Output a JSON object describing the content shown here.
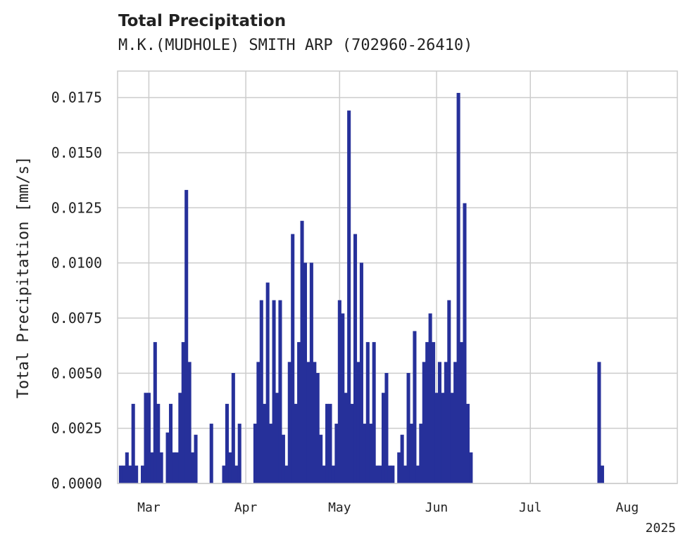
{
  "chart_data": {
    "type": "bar",
    "title": "Total Precipitation",
    "subtitle": "M.K.(MUDHOLE) SMITH ARP (702960-26410)",
    "xlabel": "",
    "ylabel": "Total Precipitation [mm/s]",
    "xlim": [
      "2025-02-19",
      "2025-08-17"
    ],
    "ylim": [
      0,
      0.0187
    ],
    "x_ticks": [
      "Mar",
      "Apr",
      "May",
      "Jun",
      "Jul",
      "Aug"
    ],
    "x_tick_dates": [
      "2025-03-01",
      "2025-04-01",
      "2025-05-01",
      "2025-06-01",
      "2025-07-01",
      "2025-08-01"
    ],
    "x_offset_label": "2025",
    "y_ticks": [
      "0.0000",
      "0.0025",
      "0.0050",
      "0.0075",
      "0.0100",
      "0.0125",
      "0.0150",
      "0.0175"
    ],
    "y_tick_values": [
      0,
      0.0025,
      0.005,
      0.0075,
      0.01,
      0.0125,
      0.015,
      0.0175
    ],
    "grid": true,
    "series": [
      {
        "color": "#26309a",
        "points": [
          [
            "2025-02-20",
            0.0008
          ],
          [
            "2025-02-21",
            0.0008
          ],
          [
            "2025-02-22",
            0.0014
          ],
          [
            "2025-02-23",
            0.0008
          ],
          [
            "2025-02-24",
            0.0036
          ],
          [
            "2025-02-25",
            0.0008
          ],
          [
            "2025-02-27",
            0.0008
          ],
          [
            "2025-02-28",
            0.0041
          ],
          [
            "2025-03-01",
            0.0041
          ],
          [
            "2025-03-02",
            0.0014
          ],
          [
            "2025-03-03",
            0.0064
          ],
          [
            "2025-03-04",
            0.0036
          ],
          [
            "2025-03-05",
            0.0014
          ],
          [
            "2025-03-07",
            0.0023
          ],
          [
            "2025-03-08",
            0.0036
          ],
          [
            "2025-03-09",
            0.0014
          ],
          [
            "2025-03-10",
            0.0014
          ],
          [
            "2025-03-11",
            0.0041
          ],
          [
            "2025-03-12",
            0.0064
          ],
          [
            "2025-03-13",
            0.0133
          ],
          [
            "2025-03-14",
            0.0055
          ],
          [
            "2025-03-15",
            0.0014
          ],
          [
            "2025-03-16",
            0.0022
          ],
          [
            "2025-03-21",
            0.0027
          ],
          [
            "2025-03-25",
            0.0008
          ],
          [
            "2025-03-26",
            0.0036
          ],
          [
            "2025-03-27",
            0.0014
          ],
          [
            "2025-03-28",
            0.005
          ],
          [
            "2025-03-29",
            0.0008
          ],
          [
            "2025-03-30",
            0.0027
          ],
          [
            "2025-04-04",
            0.0027
          ],
          [
            "2025-04-05",
            0.0055
          ],
          [
            "2025-04-06",
            0.0083
          ],
          [
            "2025-04-07",
            0.0036
          ],
          [
            "2025-04-08",
            0.0091
          ],
          [
            "2025-04-09",
            0.0027
          ],
          [
            "2025-04-10",
            0.0083
          ],
          [
            "2025-04-11",
            0.0041
          ],
          [
            "2025-04-12",
            0.0083
          ],
          [
            "2025-04-13",
            0.0022
          ],
          [
            "2025-04-14",
            0.0008
          ],
          [
            "2025-04-15",
            0.0055
          ],
          [
            "2025-04-16",
            0.0113
          ],
          [
            "2025-04-17",
            0.0036
          ],
          [
            "2025-04-18",
            0.0064
          ],
          [
            "2025-04-19",
            0.0119
          ],
          [
            "2025-04-20",
            0.01
          ],
          [
            "2025-04-21",
            0.0055
          ],
          [
            "2025-04-22",
            0.01
          ],
          [
            "2025-04-23",
            0.0055
          ],
          [
            "2025-04-24",
            0.005
          ],
          [
            "2025-04-25",
            0.0022
          ],
          [
            "2025-04-26",
            0.0008
          ],
          [
            "2025-04-27",
            0.0036
          ],
          [
            "2025-04-28",
            0.0036
          ],
          [
            "2025-04-29",
            0.0008
          ],
          [
            "2025-04-30",
            0.0027
          ],
          [
            "2025-05-01",
            0.0083
          ],
          [
            "2025-05-02",
            0.0077
          ],
          [
            "2025-05-03",
            0.0041
          ],
          [
            "2025-05-04",
            0.0169
          ],
          [
            "2025-05-05",
            0.0036
          ],
          [
            "2025-05-06",
            0.0113
          ],
          [
            "2025-05-07",
            0.0055
          ],
          [
            "2025-05-08",
            0.01
          ],
          [
            "2025-05-09",
            0.0027
          ],
          [
            "2025-05-10",
            0.0064
          ],
          [
            "2025-05-11",
            0.0027
          ],
          [
            "2025-05-12",
            0.0064
          ],
          [
            "2025-05-13",
            0.0008
          ],
          [
            "2025-05-14",
            0.0008
          ],
          [
            "2025-05-15",
            0.0041
          ],
          [
            "2025-05-16",
            0.005
          ],
          [
            "2025-05-17",
            0.0008
          ],
          [
            "2025-05-18",
            0.0008
          ],
          [
            "2025-05-20",
            0.0014
          ],
          [
            "2025-05-21",
            0.0022
          ],
          [
            "2025-05-22",
            0.0008
          ],
          [
            "2025-05-23",
            0.005
          ],
          [
            "2025-05-24",
            0.0027
          ],
          [
            "2025-05-25",
            0.0069
          ],
          [
            "2025-05-26",
            0.0008
          ],
          [
            "2025-05-27",
            0.0027
          ],
          [
            "2025-05-28",
            0.0055
          ],
          [
            "2025-05-29",
            0.0064
          ],
          [
            "2025-05-30",
            0.0077
          ],
          [
            "2025-05-31",
            0.0064
          ],
          [
            "2025-06-01",
            0.0041
          ],
          [
            "2025-06-02",
            0.0055
          ],
          [
            "2025-06-03",
            0.0041
          ],
          [
            "2025-06-04",
            0.0055
          ],
          [
            "2025-06-05",
            0.0083
          ],
          [
            "2025-06-06",
            0.0041
          ],
          [
            "2025-06-07",
            0.0055
          ],
          [
            "2025-06-08",
            0.0177
          ],
          [
            "2025-06-09",
            0.0064
          ],
          [
            "2025-06-10",
            0.0127
          ],
          [
            "2025-06-11",
            0.0036
          ],
          [
            "2025-06-12",
            0.0014
          ],
          [
            "2025-07-23",
            0.0055
          ],
          [
            "2025-07-24",
            0.0008
          ]
        ]
      }
    ]
  }
}
